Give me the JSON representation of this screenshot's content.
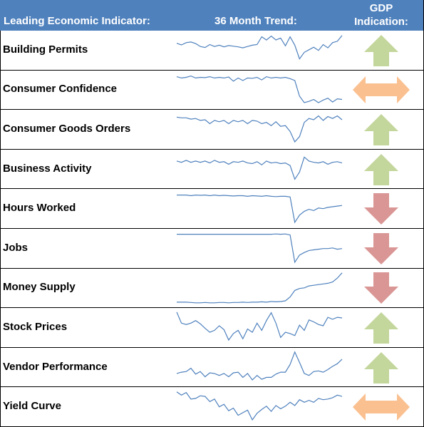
{
  "header": {
    "indicator_label": "Leading Economic Indicator:",
    "trend_label": "36 Month Trend:",
    "gdp_label_line1": "GDP",
    "gdp_label_line2": "Indication:"
  },
  "colors": {
    "header_bg": "#4f81bd",
    "sparkline": "#4f81bd",
    "up": "#c3d69b",
    "down": "#d99694",
    "sideways": "#fac090"
  },
  "chart_data": {
    "type": "line",
    "x": [
      1,
      2,
      3,
      4,
      5,
      6,
      7,
      8,
      9,
      10,
      11,
      12,
      13,
      14,
      15,
      16,
      17,
      18,
      19,
      20,
      21,
      22,
      23,
      24,
      25,
      26,
      27,
      28,
      29,
      30,
      31,
      32,
      33,
      34,
      35,
      36
    ],
    "series": [
      {
        "name": "Building Permits",
        "signal": "up",
        "icon": "up-arrow-icon",
        "values": [
          0.7,
          0.65,
          0.72,
          0.74,
          0.69,
          0.6,
          0.57,
          0.66,
          0.6,
          0.64,
          0.59,
          0.63,
          0.61,
          0.59,
          0.56,
          0.6,
          0.64,
          0.66,
          0.9,
          0.8,
          0.92,
          0.8,
          0.86,
          0.62,
          0.9,
          0.64,
          0.22,
          0.42,
          0.5,
          0.58,
          0.48,
          0.66,
          0.56,
          0.72,
          0.76,
          0.94
        ]
      },
      {
        "name": "Consumer Confidence",
        "signal": "sideways",
        "icon": "double-arrow-icon",
        "values": [
          0.9,
          0.86,
          0.88,
          0.92,
          0.86,
          0.88,
          0.87,
          0.9,
          0.86,
          0.88,
          0.86,
          0.89,
          0.76,
          0.86,
          0.78,
          0.86,
          0.85,
          0.88,
          0.8,
          0.9,
          0.86,
          0.88,
          0.86,
          0.88,
          0.84,
          0.78,
          0.3,
          0.1,
          0.14,
          0.2,
          0.1,
          0.18,
          0.24,
          0.12,
          0.22,
          0.2
        ]
      },
      {
        "name": "Consumer Goods Orders",
        "signal": "up",
        "icon": "up-arrow-icon",
        "values": [
          0.86,
          0.84,
          0.84,
          0.8,
          0.82,
          0.76,
          0.78,
          0.66,
          0.76,
          0.72,
          0.76,
          0.66,
          0.76,
          0.72,
          0.76,
          0.66,
          0.76,
          0.74,
          0.66,
          0.7,
          0.6,
          0.72,
          0.58,
          0.6,
          0.42,
          0.1,
          0.26,
          0.7,
          0.82,
          0.78,
          0.9,
          0.76,
          0.88,
          0.82,
          0.9,
          0.78
        ]
      },
      {
        "name": "Business Activity",
        "signal": "up",
        "icon": "up-arrow-icon",
        "values": [
          0.74,
          0.7,
          0.76,
          0.7,
          0.74,
          0.7,
          0.74,
          0.68,
          0.76,
          0.7,
          0.72,
          0.64,
          0.72,
          0.7,
          0.74,
          0.68,
          0.66,
          0.72,
          0.62,
          0.74,
          0.68,
          0.7,
          0.66,
          0.68,
          0.6,
          0.18,
          0.4,
          0.86,
          0.74,
          0.7,
          0.68,
          0.72,
          0.64,
          0.7,
          0.72,
          0.68
        ]
      },
      {
        "name": "Hours Worked",
        "signal": "down",
        "icon": "down-arrow-icon",
        "values": [
          0.9,
          0.9,
          0.9,
          0.88,
          0.9,
          0.89,
          0.9,
          0.88,
          0.9,
          0.88,
          0.89,
          0.88,
          0.87,
          0.88,
          0.88,
          0.86,
          0.88,
          0.87,
          0.86,
          0.88,
          0.86,
          0.85,
          0.86,
          0.86,
          0.84,
          0.06,
          0.28,
          0.4,
          0.46,
          0.42,
          0.5,
          0.48,
          0.52,
          0.54,
          0.56,
          0.58
        ]
      },
      {
        "name": "Jobs",
        "signal": "down",
        "icon": "down-arrow-icon",
        "values": [
          0.92,
          0.92,
          0.92,
          0.92,
          0.92,
          0.92,
          0.92,
          0.92,
          0.92,
          0.92,
          0.92,
          0.92,
          0.92,
          0.92,
          0.92,
          0.92,
          0.92,
          0.92,
          0.92,
          0.92,
          0.92,
          0.93,
          0.92,
          0.93,
          0.9,
          0.06,
          0.28,
          0.36,
          0.42,
          0.44,
          0.46,
          0.48,
          0.48,
          0.5,
          0.46,
          0.48
        ]
      },
      {
        "name": "Money Supply",
        "signal": "down",
        "icon": "down-arrow-icon",
        "values": [
          0.06,
          0.06,
          0.06,
          0.05,
          0.04,
          0.04,
          0.05,
          0.04,
          0.04,
          0.05,
          0.05,
          0.04,
          0.05,
          0.05,
          0.06,
          0.05,
          0.06,
          0.06,
          0.07,
          0.06,
          0.08,
          0.07,
          0.08,
          0.1,
          0.22,
          0.42,
          0.48,
          0.5,
          0.56,
          0.58,
          0.6,
          0.62,
          0.64,
          0.68,
          0.8,
          0.96
        ]
      },
      {
        "name": "Stock Prices",
        "signal": "up",
        "icon": "up-arrow-icon",
        "values": [
          0.96,
          0.62,
          0.58,
          0.62,
          0.7,
          0.6,
          0.46,
          0.34,
          0.4,
          0.54,
          0.42,
          0.1,
          0.3,
          0.4,
          0.14,
          0.44,
          0.34,
          0.62,
          0.4,
          0.7,
          0.94,
          0.62,
          0.18,
          0.34,
          0.3,
          0.24,
          0.56,
          0.4,
          0.72,
          0.66,
          0.58,
          0.54,
          0.8,
          0.74,
          0.8,
          0.78
        ]
      },
      {
        "name": "Vendor Performance",
        "signal": "up",
        "icon": "up-arrow-icon",
        "values": [
          0.3,
          0.34,
          0.36,
          0.46,
          0.28,
          0.36,
          0.2,
          0.32,
          0.3,
          0.24,
          0.3,
          0.2,
          0.32,
          0.34,
          0.18,
          0.3,
          0.1,
          0.24,
          0.12,
          0.18,
          0.18,
          0.28,
          0.34,
          0.34,
          0.58,
          0.96,
          0.64,
          0.3,
          0.24,
          0.36,
          0.38,
          0.34,
          0.42,
          0.52,
          0.6,
          0.74
        ]
      },
      {
        "name": "Yield Curve",
        "signal": "sideways",
        "icon": "double-arrow-icon",
        "values": [
          0.94,
          0.84,
          0.92,
          0.72,
          0.74,
          0.82,
          0.8,
          0.64,
          0.72,
          0.48,
          0.56,
          0.36,
          0.44,
          0.22,
          0.3,
          0.38,
          0.08,
          0.28,
          0.4,
          0.5,
          0.34,
          0.52,
          0.42,
          0.5,
          0.62,
          0.52,
          0.7,
          0.62,
          0.68,
          0.62,
          0.74,
          0.7,
          0.72,
          0.76,
          0.84,
          0.8
        ]
      }
    ]
  }
}
